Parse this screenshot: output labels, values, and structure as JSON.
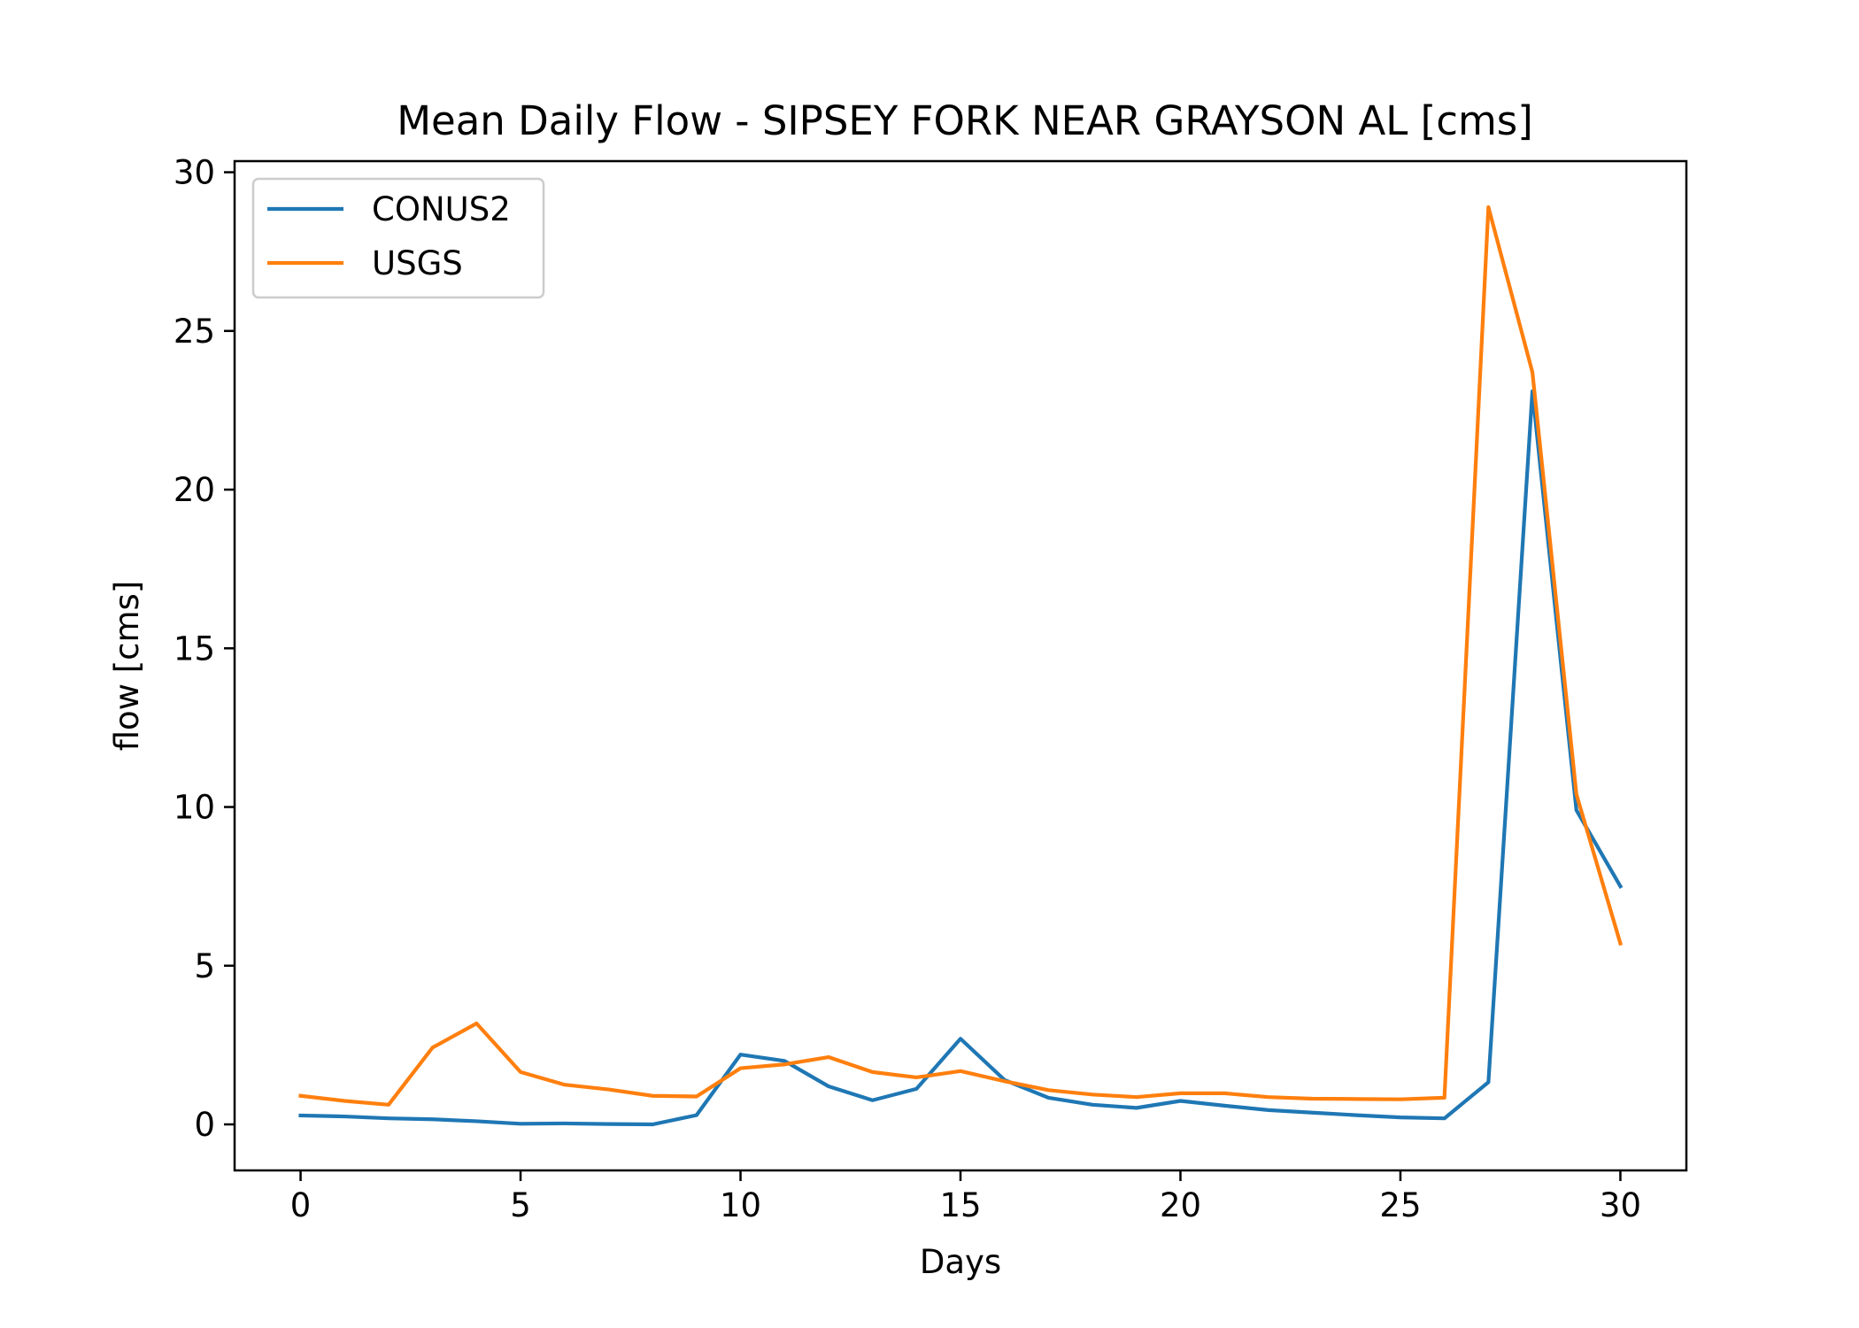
{
  "chart_data": {
    "type": "line",
    "title": "Mean Daily Flow - SIPSEY FORK NEAR GRAYSON AL [cms]",
    "xlabel": "Days",
    "ylabel": "flow [cms]",
    "xlim": [
      -1.5,
      31.5
    ],
    "ylim": [
      -1.45,
      30.35
    ],
    "xticks": [
      0,
      5,
      10,
      15,
      20,
      25,
      30
    ],
    "yticks": [
      0,
      5,
      10,
      15,
      20,
      25,
      30
    ],
    "xtick_labels": [
      "0",
      "5",
      "10",
      "15",
      "20",
      "25",
      "30"
    ],
    "ytick_labels": [
      "0",
      "5",
      "10",
      "15",
      "20",
      "25",
      "30"
    ],
    "legend_position": "upper-left",
    "grid": false,
    "x": [
      0,
      1,
      2,
      3,
      4,
      5,
      6,
      7,
      8,
      9,
      10,
      11,
      12,
      13,
      14,
      15,
      16,
      17,
      18,
      19,
      20,
      21,
      22,
      23,
      24,
      25,
      26,
      27,
      28,
      29,
      30
    ],
    "series": [
      {
        "name": "CONUS2",
        "color": "#1f77b4",
        "values": [
          0.28,
          0.25,
          0.19,
          0.16,
          0.1,
          0.02,
          0.03,
          0.01,
          0.0,
          0.29,
          2.2,
          2.0,
          1.2,
          0.76,
          1.12,
          2.7,
          1.4,
          0.84,
          0.62,
          0.52,
          0.74,
          0.59,
          0.45,
          0.37,
          0.29,
          0.22,
          0.19,
          1.33,
          23.1,
          9.9,
          7.5
        ]
      },
      {
        "name": "USGS",
        "color": "#ff7f0e",
        "values": [
          0.9,
          0.74,
          0.62,
          2.42,
          3.18,
          1.65,
          1.25,
          1.1,
          0.9,
          0.88,
          1.77,
          1.89,
          2.12,
          1.65,
          1.48,
          1.68,
          1.36,
          1.08,
          0.94,
          0.86,
          0.98,
          0.98,
          0.86,
          0.81,
          0.8,
          0.79,
          0.84,
          28.9,
          23.7,
          10.4,
          5.7
        ]
      }
    ]
  }
}
